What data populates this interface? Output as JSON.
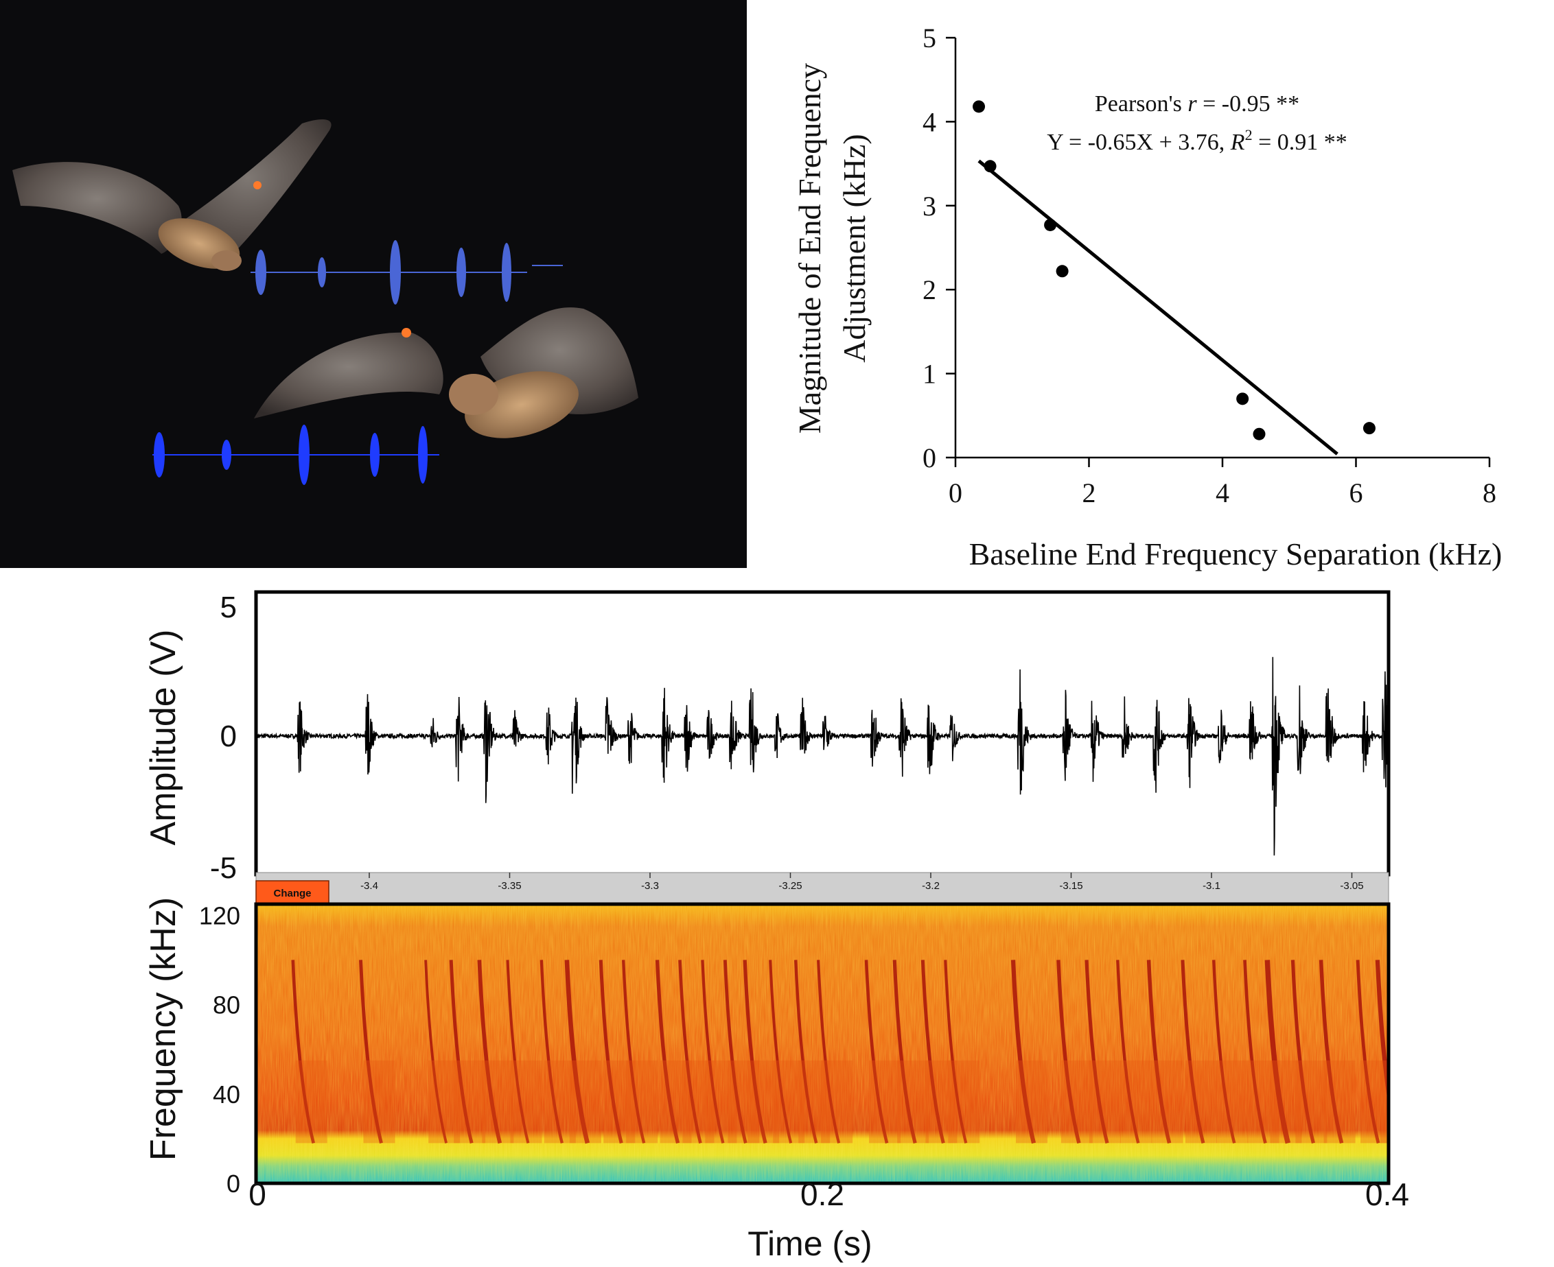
{
  "bats_panel": {
    "background": "#0b0b0d",
    "pulse_color_upper": "#4a66d6",
    "pulse_color_lower": "#1f3cff"
  },
  "chart_data": [
    {
      "type": "scatter",
      "xlabel": "Baseline End Frequency Separation (kHz)",
      "ylabel_line1": "Magnitude of End Frequency",
      "ylabel_line2": "Adjustment (kHz)",
      "xlim": [
        0,
        8
      ],
      "ylim": [
        0,
        5
      ],
      "xticks": [
        "0",
        "2",
        "4",
        "6",
        "8"
      ],
      "yticks": [
        "0",
        "1",
        "2",
        "3",
        "4",
        "5"
      ],
      "points": [
        {
          "x": 0.35,
          "y": 4.18
        },
        {
          "x": 0.52,
          "y": 3.47
        },
        {
          "x": 1.42,
          "y": 2.77
        },
        {
          "x": 1.6,
          "y": 2.22
        },
        {
          "x": 4.3,
          "y": 0.7
        },
        {
          "x": 4.55,
          "y": 0.28
        },
        {
          "x": 6.2,
          "y": 0.35
        }
      ],
      "fit": {
        "slope": -0.65,
        "intercept": 3.76,
        "x_start": 0.35,
        "x_end": 5.72
      },
      "annotation_line1_prefix": "Pearson's ",
      "annotation_line1_italic": "r",
      "annotation_line1_suffix": " = -0.95 **",
      "annotation_line2_prefix": "Y = -0.65X + 3.76, ",
      "annotation_line2_italic": "R",
      "annotation_line2_sup": "2",
      "annotation_line2_suffix": " = 0.91 **",
      "grid": false
    },
    {
      "type": "line",
      "ylabel": "Amplitude (V)",
      "yticks": [
        "5",
        "0",
        "-5"
      ],
      "ylim": [
        -5,
        5
      ],
      "xlim": [
        0,
        0.4
      ],
      "pulse_times": [
        0.015,
        0.039,
        0.062,
        0.071,
        0.081,
        0.091,
        0.103,
        0.112,
        0.124,
        0.132,
        0.144,
        0.152,
        0.16,
        0.168,
        0.175,
        0.184,
        0.193,
        0.201,
        0.218,
        0.228,
        0.238,
        0.246,
        0.27,
        0.286,
        0.296,
        0.307,
        0.318,
        0.33,
        0.341,
        0.352,
        0.36,
        0.369,
        0.379,
        0.392,
        0.399
      ],
      "pulse_amps": [
        1.8,
        2.2,
        1.0,
        2.2,
        3.0,
        1.2,
        1.5,
        4.0,
        2.3,
        1.5,
        2.6,
        1.8,
        1.4,
        2.0,
        2.5,
        1.2,
        1.6,
        1.3,
        1.8,
        2.4,
        2.2,
        1.3,
        3.6,
        2.7,
        2.4,
        1.6,
        2.8,
        2.3,
        1.6,
        1.9,
        5.0,
        2.4,
        2.8,
        2.0,
        3.6
      ]
    },
    {
      "type": "heatmap",
      "toolbar_ticks": [
        "-3.4",
        "-3.35",
        "-3.3",
        "-3.25",
        "-3.2",
        "-3.15",
        "-3.1",
        "-3.05"
      ],
      "toolbar_button": "Change",
      "ylabel": "Frequency (kHz)",
      "yticks": [
        "0",
        "40",
        "80",
        "120"
      ],
      "ylim": [
        0,
        125
      ],
      "xlabel": "Time (s)",
      "xticks": [
        "0",
        "0.2",
        "0.4"
      ],
      "xlim": [
        0,
        0.4
      ],
      "colors": {
        "low": "#2fc4c4",
        "mid": "#f4d31a",
        "high": "#e85a10",
        "peak": "#a8140a"
      }
    }
  ]
}
